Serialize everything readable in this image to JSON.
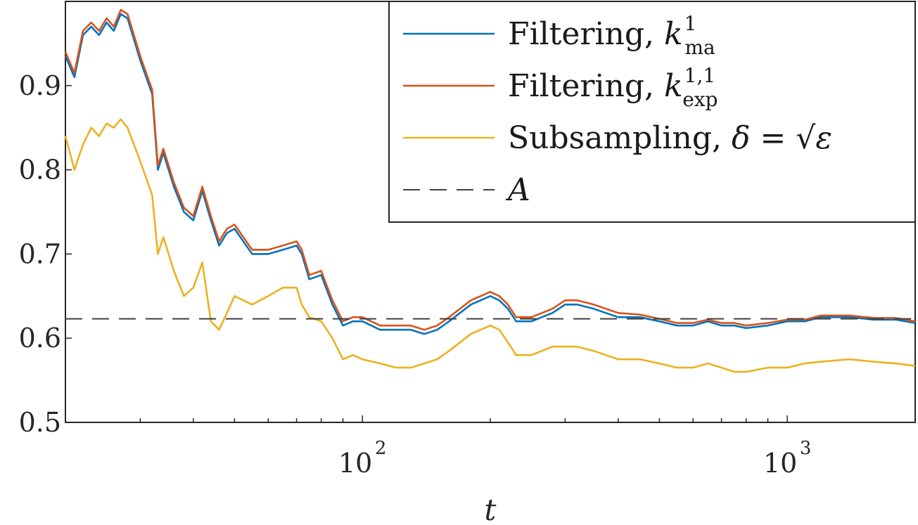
{
  "chart_data": {
    "type": "line",
    "title": "",
    "xlabel": "t",
    "ylabel": "",
    "xscale": "log",
    "xlim": [
      20,
      2000
    ],
    "ylim": [
      0.5,
      1.0
    ],
    "yticks": [
      0.5,
      0.6,
      0.7,
      0.8,
      0.9
    ],
    "ytick_labels": [
      "0.5",
      "0.6",
      "0.7",
      "0.8",
      "0.9"
    ],
    "xticks": [
      100,
      1000
    ],
    "xtick_labels": [
      "10",
      "10"
    ],
    "xtick_exponents": [
      "2",
      "3"
    ],
    "grid": false,
    "legend": "top-right",
    "series": [
      {
        "name": "Filtering, k_ma^1",
        "legend_parts": {
          "text": "Filtering, ",
          "math": "k",
          "sup": "1",
          "sub": "ma"
        },
        "color": "#0072BD",
        "style": "solid",
        "x": [
          20,
          21,
          22,
          23,
          24,
          25,
          26,
          27,
          28,
          30,
          32,
          33,
          34,
          36,
          38,
          40,
          42,
          44,
          46,
          48,
          50,
          55,
          60,
          65,
          70,
          72,
          75,
          80,
          85,
          90,
          95,
          100,
          110,
          120,
          130,
          140,
          150,
          160,
          180,
          200,
          210,
          220,
          230,
          250,
          280,
          300,
          320,
          350,
          400,
          450,
          500,
          550,
          600,
          650,
          700,
          750,
          800,
          900,
          1000,
          1100,
          1200,
          1400,
          1600,
          1800,
          2000
        ],
        "y": [
          0.935,
          0.91,
          0.96,
          0.97,
          0.96,
          0.975,
          0.965,
          0.985,
          0.98,
          0.93,
          0.89,
          0.8,
          0.82,
          0.78,
          0.75,
          0.74,
          0.775,
          0.74,
          0.71,
          0.725,
          0.73,
          0.7,
          0.7,
          0.705,
          0.71,
          0.7,
          0.67,
          0.675,
          0.64,
          0.615,
          0.62,
          0.62,
          0.61,
          0.61,
          0.61,
          0.605,
          0.61,
          0.62,
          0.64,
          0.65,
          0.645,
          0.635,
          0.62,
          0.62,
          0.63,
          0.64,
          0.64,
          0.635,
          0.625,
          0.625,
          0.62,
          0.615,
          0.615,
          0.62,
          0.615,
          0.615,
          0.612,
          0.615,
          0.62,
          0.62,
          0.625,
          0.625,
          0.622,
          0.622,
          0.618
        ]
      },
      {
        "name": "Filtering, k_exp^1,1",
        "legend_parts": {
          "text": "Filtering, ",
          "math": "k",
          "sup": "1,1",
          "sub": "exp"
        },
        "color": "#D95319",
        "style": "solid",
        "x": [
          20,
          21,
          22,
          23,
          24,
          25,
          26,
          27,
          28,
          30,
          32,
          33,
          34,
          36,
          38,
          40,
          42,
          44,
          46,
          48,
          50,
          55,
          60,
          65,
          70,
          72,
          75,
          80,
          85,
          90,
          95,
          100,
          110,
          120,
          130,
          140,
          150,
          160,
          180,
          200,
          210,
          220,
          230,
          250,
          280,
          300,
          320,
          350,
          400,
          450,
          500,
          550,
          600,
          650,
          700,
          750,
          800,
          900,
          1000,
          1100,
          1200,
          1400,
          1600,
          1800,
          2000
        ],
        "y": [
          0.94,
          0.915,
          0.965,
          0.975,
          0.965,
          0.98,
          0.97,
          0.99,
          0.985,
          0.935,
          0.895,
          0.805,
          0.825,
          0.785,
          0.755,
          0.745,
          0.78,
          0.745,
          0.715,
          0.73,
          0.735,
          0.705,
          0.705,
          0.71,
          0.715,
          0.705,
          0.675,
          0.68,
          0.645,
          0.62,
          0.625,
          0.625,
          0.615,
          0.615,
          0.615,
          0.61,
          0.615,
          0.625,
          0.645,
          0.655,
          0.65,
          0.64,
          0.625,
          0.625,
          0.635,
          0.645,
          0.645,
          0.64,
          0.63,
          0.628,
          0.623,
          0.618,
          0.618,
          0.622,
          0.618,
          0.618,
          0.615,
          0.618,
          0.622,
          0.622,
          0.627,
          0.627,
          0.624,
          0.624,
          0.62
        ]
      },
      {
        "name": "Subsampling, δ = √ε",
        "legend_parts": {
          "text": "Subsampling, ",
          "math": "δ = √ε",
          "sup": "",
          "sub": ""
        },
        "color": "#EDB120",
        "style": "solid",
        "x": [
          20,
          21,
          22,
          23,
          24,
          25,
          26,
          27,
          28,
          30,
          32,
          33,
          34,
          36,
          38,
          40,
          42,
          44,
          46,
          48,
          50,
          55,
          60,
          65,
          70,
          72,
          75,
          80,
          85,
          90,
          95,
          100,
          110,
          120,
          130,
          140,
          150,
          160,
          180,
          200,
          210,
          220,
          230,
          250,
          280,
          300,
          320,
          350,
          400,
          450,
          500,
          550,
          600,
          650,
          700,
          750,
          800,
          900,
          1000,
          1100,
          1200,
          1400,
          1600,
          1800,
          2000
        ],
        "y": [
          0.84,
          0.8,
          0.83,
          0.85,
          0.84,
          0.855,
          0.85,
          0.86,
          0.85,
          0.81,
          0.77,
          0.7,
          0.72,
          0.68,
          0.65,
          0.66,
          0.69,
          0.62,
          0.61,
          0.63,
          0.65,
          0.64,
          0.65,
          0.66,
          0.66,
          0.64,
          0.625,
          0.62,
          0.6,
          0.575,
          0.58,
          0.575,
          0.57,
          0.565,
          0.565,
          0.57,
          0.575,
          0.585,
          0.605,
          0.615,
          0.61,
          0.595,
          0.58,
          0.58,
          0.59,
          0.59,
          0.59,
          0.585,
          0.575,
          0.575,
          0.57,
          0.565,
          0.565,
          0.57,
          0.565,
          0.56,
          0.56,
          0.565,
          0.565,
          0.57,
          0.572,
          0.575,
          0.572,
          0.57,
          0.567
        ]
      },
      {
        "name": "A",
        "legend_parts": {
          "text": "",
          "math": "A",
          "sup": "",
          "sub": ""
        },
        "color": "#404040",
        "style": "dashed",
        "x": [
          20,
          2000
        ],
        "y": [
          0.623,
          0.623
        ]
      }
    ]
  }
}
